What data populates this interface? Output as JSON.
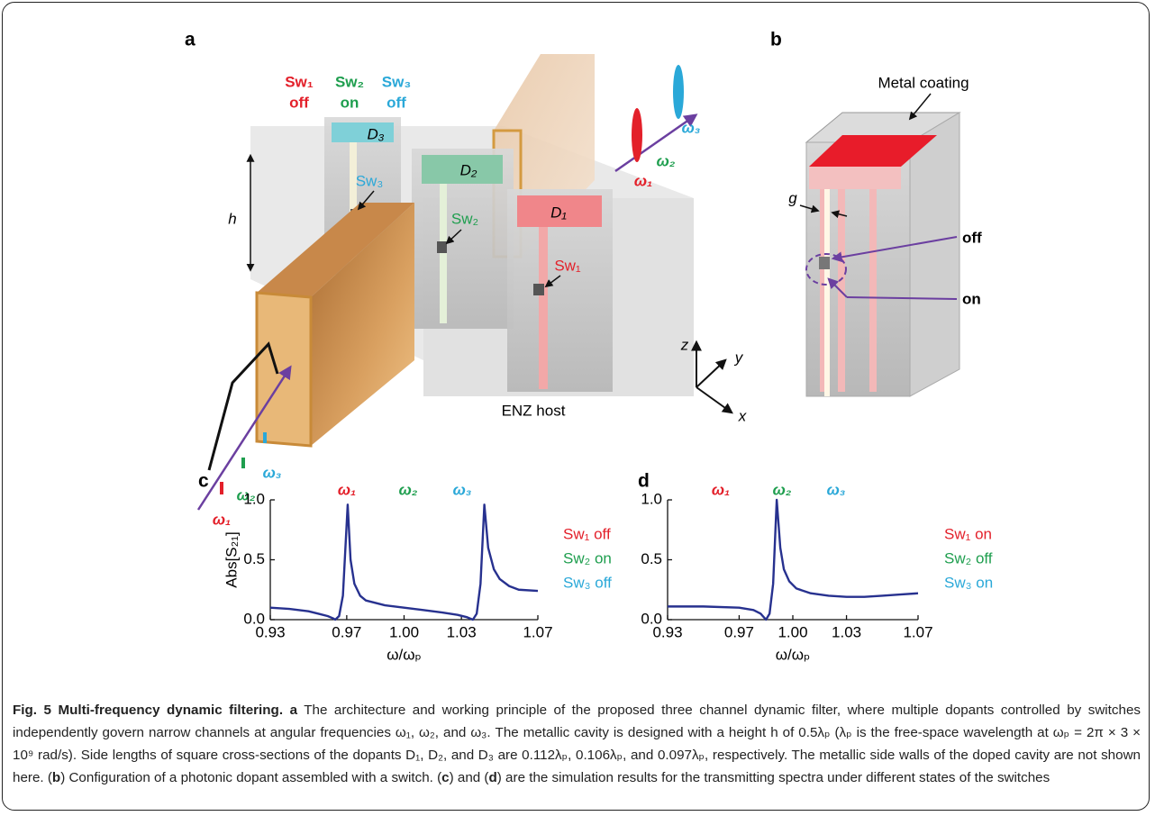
{
  "panel_a": {
    "label": "a",
    "state_switches": [
      "Sw₁",
      "Sw₂",
      "Sw₃"
    ],
    "states": [
      "off",
      "on",
      "off"
    ],
    "dopants": [
      "D₁",
      "D₂",
      "D₃"
    ],
    "switches": [
      "Sw₁",
      "Sw₂",
      "Sw₃"
    ],
    "height": "h",
    "input_frequencies": [
      "ω₁",
      "ω₂",
      "ω₃"
    ],
    "output_frequencies": [
      "ω₁",
      "ω₂",
      "ω₃"
    ],
    "host": "ENZ host",
    "axes": [
      "z",
      "y",
      "x"
    ]
  },
  "panel_b": {
    "label": "b",
    "coating": "Metal coating",
    "gap": "g",
    "off": "off",
    "on": "on"
  },
  "chart_data": [
    {
      "type": "line",
      "label": "c",
      "ylabel": "Abs[S₂₁]",
      "xlabel": "ω/ωₚ",
      "xlim": [
        0.93,
        1.07
      ],
      "ylim": [
        0,
        1
      ],
      "xticks": [
        0.93,
        0.97,
        {
          "value": 1,
          "label": "1.00"
        },
        1.03,
        1.07
      ],
      "yticks": [
        {
          "value": 0,
          "label": "0.0"
        },
        0.5,
        {
          "value": 1,
          "label": "1.0"
        }
      ],
      "x": [
        0.93,
        0.94,
        0.95,
        0.955,
        0.96,
        0.963,
        0.964,
        0.966,
        0.968,
        0.9705,
        0.972,
        0.974,
        0.977,
        0.98,
        0.99,
        1.0,
        1.01,
        1.02,
        1.028,
        1.033,
        1.036,
        1.038,
        1.04,
        1.042,
        1.044,
        1.047,
        1.05,
        1.055,
        1.06,
        1.07
      ],
      "series": [
        {
          "color": "#27318f",
          "values": [
            0.1,
            0.09,
            0.07,
            0.05,
            0.03,
            0.01,
            0.0,
            0.03,
            0.2,
            0.96,
            0.5,
            0.3,
            0.2,
            0.16,
            0.12,
            0.1,
            0.08,
            0.06,
            0.04,
            0.02,
            0.0,
            0.05,
            0.3,
            0.96,
            0.6,
            0.42,
            0.34,
            0.28,
            0.25,
            0.24
          ]
        }
      ],
      "top_labels": [
        {
          "text": "ω₁",
          "color": "#e3202a"
        },
        {
          "text": "ω₂",
          "color": "#1e9e4e"
        },
        {
          "text": "ω₃",
          "color": "#2aa8d8"
        }
      ],
      "state_labels": [
        {
          "text": "Sw₁ off",
          "color": "#e3202a"
        },
        {
          "text": "Sw₂ on",
          "color": "#1e9e4e"
        },
        {
          "text": "Sw₃ off",
          "color": "#2aa8d8"
        }
      ]
    },
    {
      "type": "line",
      "label": "d",
      "xlabel": "ω/ωₚ",
      "xlim": [
        0.93,
        1.07
      ],
      "ylim": [
        0,
        1
      ],
      "xticks": [
        0.93,
        0.97,
        {
          "value": 1,
          "label": "1.00"
        },
        1.03,
        1.07
      ],
      "yticks": [
        {
          "value": 0,
          "label": "0.0"
        },
        0.5,
        {
          "value": 1,
          "label": "1.0"
        }
      ],
      "x": [
        0.93,
        0.95,
        0.97,
        0.978,
        0.982,
        0.985,
        0.987,
        0.989,
        0.991,
        0.993,
        0.995,
        0.998,
        1.002,
        1.01,
        1.02,
        1.03,
        1.04,
        1.05,
        1.06,
        1.07
      ],
      "series": [
        {
          "color": "#27318f",
          "values": [
            0.11,
            0.11,
            0.1,
            0.08,
            0.05,
            0.0,
            0.05,
            0.3,
            1.0,
            0.6,
            0.42,
            0.32,
            0.26,
            0.22,
            0.2,
            0.19,
            0.19,
            0.2,
            0.21,
            0.22
          ]
        }
      ],
      "top_labels": [
        {
          "text": "ω₁",
          "color": "#e3202a"
        },
        {
          "text": "ω₂",
          "color": "#1e9e4e"
        },
        {
          "text": "ω₃",
          "color": "#2aa8d8"
        }
      ],
      "state_labels": [
        {
          "text": "Sw₁ on",
          "color": "#e3202a"
        },
        {
          "text": "Sw₂ off",
          "color": "#1e9e4e"
        },
        {
          "text": "Sw₃ on",
          "color": "#2aa8d8"
        }
      ]
    }
  ],
  "caption": {
    "title": "Fig. 5 Multi-frequency dynamic filtering.",
    "segments": [
      "a",
      " The architecture and working principle of the proposed three channel dynamic filter, where multiple dopants controlled by switches independently govern narrow channels at angular frequencies ω₁, ω₂, and ω₃. The metallic cavity is designed with a height h of 0.5λₚ (λₚ is the free-space wavelength at ωₚ = 2π × 3 × 10⁹ rad/s). Side lengths of square cross-sections of the dopants D₁, D₂, and D₃ are 0.112λₚ, 0.106λₚ, and 0.097λₚ, respectively. The metallic side walls of the doped cavity are not shown here. (",
      "b",
      ") Configuration of a photonic dopant assembled with a switch. (",
      "c",
      ") and (",
      "d",
      ") are the simulation results for the transmitting spectra under different states of the switches"
    ]
  }
}
